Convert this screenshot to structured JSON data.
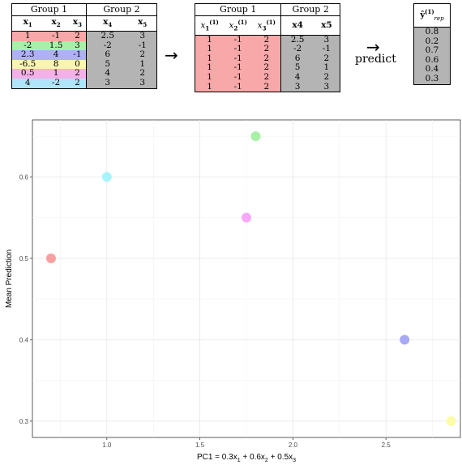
{
  "table1": {
    "group1_label": "Group 1",
    "group2_label": "Group 2",
    "headers": [
      "x1",
      "x2",
      "x3",
      "x4",
      "x5"
    ],
    "rows": [
      {
        "g1": [
          "1",
          "-1",
          "2"
        ],
        "g2": [
          "2.5",
          "3"
        ],
        "color": "#f8a8a8"
      },
      {
        "g1": [
          "-2",
          "1.5",
          "3"
        ],
        "g2": [
          "-2",
          "-1"
        ],
        "color": "#a8f0a8"
      },
      {
        "g1": [
          "2.3",
          "4",
          "-1"
        ],
        "g2": [
          "6",
          "2"
        ],
        "color": "#b0b0f4"
      },
      {
        "g1": [
          "-6.5",
          "8",
          "0"
        ],
        "g2": [
          "5",
          "1"
        ],
        "color": "#f8f4b4"
      },
      {
        "g1": [
          "0.5",
          "1",
          "2"
        ],
        "g2": [
          "4",
          "2"
        ],
        "color": "#f4b0e8"
      },
      {
        "g1": [
          "4",
          "-2",
          "2"
        ],
        "g2": [
          "3",
          "3"
        ],
        "color": "#b0e4f8"
      }
    ]
  },
  "table2": {
    "group1_label": "Group 1",
    "group2_label": "Group 2",
    "superscript": "(1)",
    "rows": [
      {
        "g1": [
          "1",
          "-1",
          "2"
        ],
        "g2": [
          "2.5",
          "3"
        ]
      },
      {
        "g1": [
          "1",
          "-1",
          "2"
        ],
        "g2": [
          "-2",
          "-1"
        ]
      },
      {
        "g1": [
          "1",
          "-1",
          "2"
        ],
        "g2": [
          "6",
          "2"
        ]
      },
      {
        "g1": [
          "1",
          "-1",
          "2"
        ],
        "g2": [
          "5",
          "1"
        ]
      },
      {
        "g1": [
          "1",
          "-1",
          "2"
        ],
        "g2": [
          "4",
          "2"
        ]
      },
      {
        "g1": [
          "1",
          "-1",
          "2"
        ],
        "g2": [
          "3",
          "3"
        ]
      }
    ]
  },
  "arrow_symbol": "→",
  "predict_label": "predict",
  "table3": {
    "header_main": "ŷ",
    "header_sub": "rep",
    "header_sup": "(1)",
    "values": [
      "0.8",
      "0.2",
      "0.7",
      "0.6",
      "0.4",
      "0.3"
    ]
  },
  "chart_data": {
    "type": "scatter",
    "xlabel": "PC1 = 0.3x1 + 0.6x2 + 0.5x3",
    "xlabel_parts": {
      "a": "PC1 = 0.3x",
      "s1": "1",
      "b": " + 0.6x",
      "s2": "2",
      "c": " + 0.5x",
      "s3": "3"
    },
    "ylabel": "Mean Prediction",
    "xlim": [
      0.6,
      2.9
    ],
    "ylim": [
      0.28,
      0.67
    ],
    "xticks": [
      1.0,
      1.5,
      2.0,
      2.5
    ],
    "xtick_labels": [
      "1.0",
      "1.5",
      "2.0",
      "2.5"
    ],
    "yticks": [
      0.3,
      0.4,
      0.5,
      0.6
    ],
    "ytick_labels": [
      "0.3",
      "0.4",
      "0.5",
      "0.6"
    ],
    "grid": true,
    "points": [
      {
        "x": 0.7,
        "y": 0.5,
        "color": "#f8a0a0"
      },
      {
        "x": 1.0,
        "y": 0.6,
        "color": "#a8f4fc"
      },
      {
        "x": 1.75,
        "y": 0.55,
        "color": "#f8a8f8"
      },
      {
        "x": 1.8,
        "y": 0.65,
        "color": "#a8f0a8"
      },
      {
        "x": 2.6,
        "y": 0.4,
        "color": "#a8a8f4"
      },
      {
        "x": 2.85,
        "y": 0.3,
        "color": "#fcfca8"
      }
    ]
  }
}
